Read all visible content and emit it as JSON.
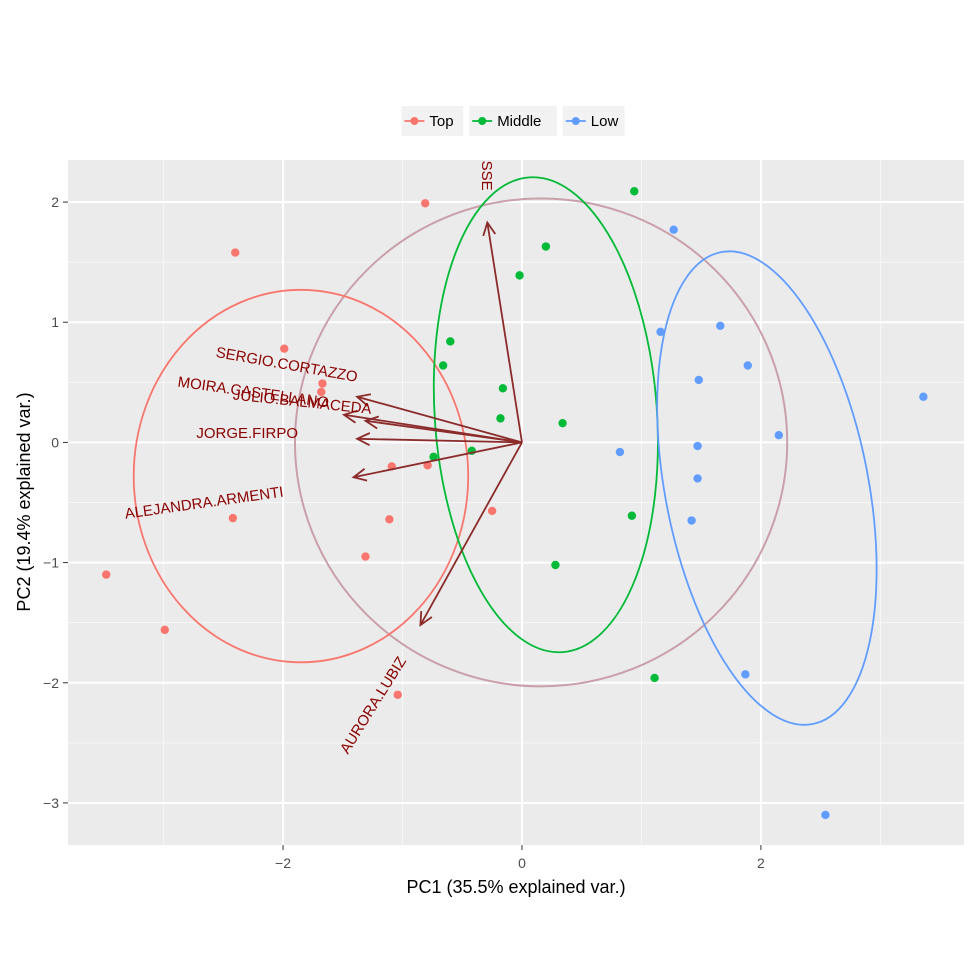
{
  "chart_data": {
    "type": "scatter",
    "xlabel": "PC1 (35.5% explained var.)",
    "ylabel": "PC2 (19.4% explained var.)",
    "xlim": [
      -3.8,
      3.7
    ],
    "ylim": [
      -3.35,
      2.35
    ],
    "x_ticks": [
      -2,
      0,
      2
    ],
    "y_ticks": [
      -3,
      -2,
      -1,
      0,
      1,
      2
    ],
    "grid": true,
    "legend_position": "top",
    "series": [
      {
        "name": "Top",
        "color": "#F8766D",
        "points": [
          {
            "x": -0.81,
            "y": 1.99
          },
          {
            "x": -2.4,
            "y": 1.58
          },
          {
            "x": -1.99,
            "y": 0.78
          },
          {
            "x": -1.67,
            "y": 0.49
          },
          {
            "x": -1.68,
            "y": 0.42
          },
          {
            "x": -1.09,
            "y": -0.2
          },
          {
            "x": -0.79,
            "y": -0.19
          },
          {
            "x": -0.25,
            "y": -0.57
          },
          {
            "x": -2.42,
            "y": -0.63
          },
          {
            "x": -1.11,
            "y": -0.64
          },
          {
            "x": -1.31,
            "y": -0.95
          },
          {
            "x": -3.48,
            "y": -1.1
          },
          {
            "x": -2.99,
            "y": -1.56
          },
          {
            "x": -1.04,
            "y": -2.1
          }
        ],
        "ellipse": {
          "cx": -1.85,
          "cy": -0.28,
          "rx": 1.4,
          "ry": 1.55,
          "angle": 0
        }
      },
      {
        "name": "Middle",
        "color": "#00BA38",
        "points": [
          {
            "x": 0.94,
            "y": 2.09
          },
          {
            "x": 0.2,
            "y": 1.63
          },
          {
            "x": -0.02,
            "y": 1.39
          },
          {
            "x": -0.6,
            "y": 0.84
          },
          {
            "x": -0.66,
            "y": 0.64
          },
          {
            "x": -0.16,
            "y": 0.45
          },
          {
            "x": -0.18,
            "y": 0.2
          },
          {
            "x": 0.34,
            "y": 0.16
          },
          {
            "x": -0.42,
            "y": -0.07
          },
          {
            "x": -0.74,
            "y": -0.12
          },
          {
            "x": 0.92,
            "y": -0.61
          },
          {
            "x": 0.28,
            "y": -1.02
          },
          {
            "x": 1.11,
            "y": -1.96
          }
        ],
        "ellipse": {
          "cx": 0.2,
          "cy": 0.23,
          "rx": 0.93,
          "ry": 1.98,
          "angle": 4
        }
      },
      {
        "name": "Low",
        "color": "#619CFF",
        "points": [
          {
            "x": 1.27,
            "y": 1.77
          },
          {
            "x": 1.16,
            "y": 0.92
          },
          {
            "x": 1.66,
            "y": 0.97
          },
          {
            "x": 1.89,
            "y": 0.64
          },
          {
            "x": 1.48,
            "y": 0.52
          },
          {
            "x": 2.15,
            "y": 0.06
          },
          {
            "x": 1.47,
            "y": -0.03
          },
          {
            "x": 0.82,
            "y": -0.08
          },
          {
            "x": 1.47,
            "y": -0.3
          },
          {
            "x": 1.42,
            "y": -0.65
          },
          {
            "x": 3.36,
            "y": 0.38
          },
          {
            "x": 1.87,
            "y": -1.93
          },
          {
            "x": 2.54,
            "y": -3.1
          }
        ],
        "ellipse": {
          "cx": 2.05,
          "cy": -0.38,
          "rx": 0.85,
          "ry": 2.0,
          "angle": 11
        }
      }
    ],
    "overall_ellipse": {
      "cx": 0.16,
      "cy": 0.0,
      "rx": 2.06,
      "ry": 2.03,
      "color": "#C9A0AA"
    },
    "loadings": [
      {
        "label": "SSE",
        "x": -0.29,
        "y": 1.83,
        "label_x": -0.3,
        "label_y": 2.22,
        "label_angle": 90
      },
      {
        "label": "SERGIO.CORTAZZO",
        "x": -1.38,
        "y": 0.38,
        "label_x": -1.97,
        "label_y": 0.64,
        "label_angle": 10
      },
      {
        "label": "MOIRA.CASTELLANO",
        "x": -1.49,
        "y": 0.23,
        "label_x": -2.25,
        "label_y": 0.41,
        "label_angle": 8
      },
      {
        "label": "JULIO.BALMACEDA",
        "x": -1.31,
        "y": 0.18,
        "label_x": -1.84,
        "label_y": 0.33,
        "label_angle": 6
      },
      {
        "label": "JORGE.FIRPO",
        "x": -1.38,
        "y": 0.03,
        "label_x": -2.3,
        "label_y": 0.07,
        "label_angle": 0
      },
      {
        "label": "ALEJANDRA.ARMENTI",
        "x": -1.41,
        "y": -0.29,
        "label_x": -2.66,
        "label_y": -0.51,
        "label_angle": -8
      },
      {
        "label": "AURORA.LUBIZ",
        "x": -0.85,
        "y": -1.52,
        "label_x": -1.24,
        "label_y": -2.19,
        "label_angle": -58
      }
    ],
    "arrow_color": "#8B2B2B"
  }
}
